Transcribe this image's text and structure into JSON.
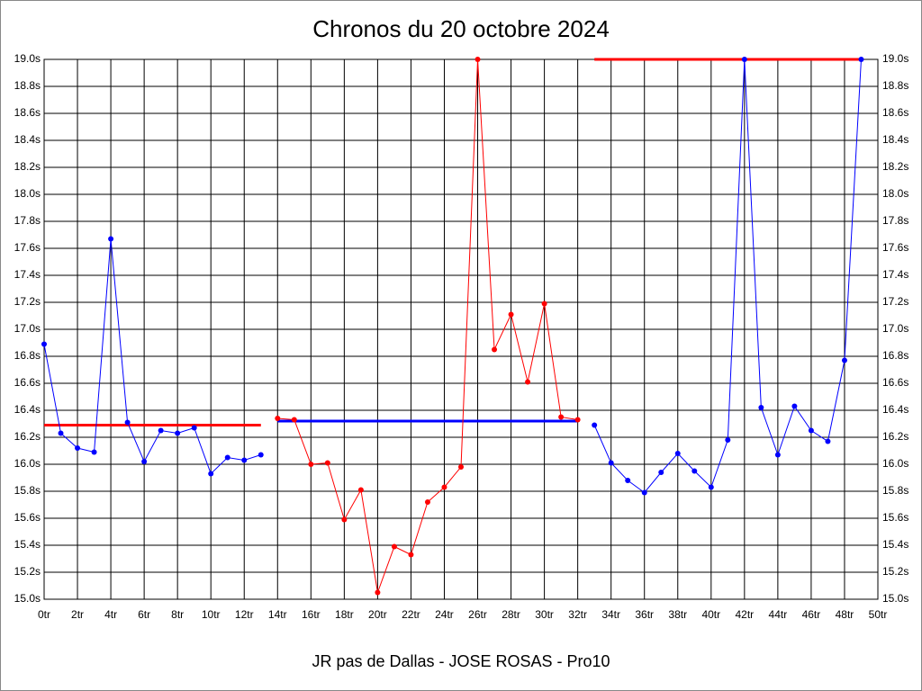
{
  "chart_data": {
    "type": "line",
    "title": "Chronos du 20 octobre 2024",
    "xlabel": "JR pas de Dallas - JOSE ROSAS - Pro10",
    "x": [
      0,
      1,
      2,
      3,
      4,
      5,
      6,
      7,
      8,
      9,
      10,
      11,
      12,
      13,
      14,
      15,
      16,
      17,
      18,
      19,
      20,
      21,
      22,
      23,
      24,
      25,
      26,
      27,
      28,
      29,
      30,
      31,
      32,
      33,
      34,
      35,
      36,
      37,
      38,
      39,
      40,
      41,
      42,
      43,
      44,
      45,
      46,
      47,
      48,
      49
    ],
    "series": [
      {
        "color": "#0000ff",
        "values": [
          16.89,
          16.23,
          16.12,
          16.09,
          17.67,
          16.31,
          16.02,
          16.25,
          16.23,
          16.27,
          15.93,
          16.05,
          16.03,
          16.07,
          null,
          null,
          null,
          null,
          null,
          null,
          null,
          null,
          null,
          null,
          null,
          null,
          null,
          null,
          null,
          null,
          null,
          null,
          null,
          16.29,
          16.01,
          15.88,
          15.79,
          15.94,
          16.08,
          15.95,
          15.83,
          16.18,
          19.0,
          16.42,
          16.07,
          16.43,
          16.25,
          16.17,
          16.77,
          19.0
        ]
      },
      {
        "color": "#ff0000",
        "values": [
          null,
          null,
          null,
          null,
          null,
          null,
          null,
          null,
          null,
          null,
          null,
          null,
          null,
          null,
          16.34,
          16.33,
          16.0,
          16.01,
          15.59,
          15.81,
          15.05,
          15.39,
          15.33,
          15.72,
          15.83,
          15.98,
          19.0,
          16.85,
          17.11,
          16.61,
          17.19,
          16.35,
          16.33,
          null,
          null,
          null,
          null,
          null,
          null,
          null,
          null,
          null,
          null,
          null,
          null,
          null,
          null,
          null,
          null,
          null
        ]
      }
    ],
    "reference_lines": [
      {
        "value": 16.29,
        "from": 0,
        "to": 13,
        "color": "#ff0000"
      },
      {
        "value": 16.32,
        "from": 14,
        "to": 32,
        "color": "#0000ff"
      },
      {
        "value": 19.0,
        "from": 33,
        "to": 49,
        "color": "#ff0000"
      }
    ],
    "xlim": [
      0,
      50
    ],
    "ylim": [
      15,
      19
    ],
    "xticks": [
      {
        "value": 0,
        "label": "0tr"
      },
      {
        "value": 2,
        "label": "2tr"
      },
      {
        "value": 4,
        "label": "4tr"
      },
      {
        "value": 6,
        "label": "6tr"
      },
      {
        "value": 8,
        "label": "8tr"
      },
      {
        "value": 10,
        "label": "10tr"
      },
      {
        "value": 12,
        "label": "12tr"
      },
      {
        "value": 14,
        "label": "14tr"
      },
      {
        "value": 16,
        "label": "16tr"
      },
      {
        "value": 18,
        "label": "18tr"
      },
      {
        "value": 20,
        "label": "20tr"
      },
      {
        "value": 22,
        "label": "22tr"
      },
      {
        "value": 24,
        "label": "24tr"
      },
      {
        "value": 26,
        "label": "26tr"
      },
      {
        "value": 28,
        "label": "28tr"
      },
      {
        "value": 30,
        "label": "30tr"
      },
      {
        "value": 32,
        "label": "32tr"
      },
      {
        "value": 34,
        "label": "34tr"
      },
      {
        "value": 36,
        "label": "36tr"
      },
      {
        "value": 38,
        "label": "38tr"
      },
      {
        "value": 40,
        "label": "40tr"
      },
      {
        "value": 42,
        "label": "42tr"
      },
      {
        "value": 44,
        "label": "44tr"
      },
      {
        "value": 46,
        "label": "46tr"
      },
      {
        "value": 48,
        "label": "48tr"
      },
      {
        "value": 50,
        "label": "50tr"
      }
    ],
    "yticks": [
      {
        "value": 15.0,
        "label": "15.0s"
      },
      {
        "value": 15.2,
        "label": "15.2s"
      },
      {
        "value": 15.4,
        "label": "15.4s"
      },
      {
        "value": 15.6,
        "label": "15.6s"
      },
      {
        "value": 15.8,
        "label": "15.8s"
      },
      {
        "value": 16.0,
        "label": "16.0s"
      },
      {
        "value": 16.2,
        "label": "16.2s"
      },
      {
        "value": 16.4,
        "label": "16.4s"
      },
      {
        "value": 16.6,
        "label": "16.6s"
      },
      {
        "value": 16.8,
        "label": "16.8s"
      },
      {
        "value": 17.0,
        "label": "17.0s"
      },
      {
        "value": 17.2,
        "label": "17.2s"
      },
      {
        "value": 17.4,
        "label": "17.4s"
      },
      {
        "value": 17.6,
        "label": "17.6s"
      },
      {
        "value": 17.8,
        "label": "17.8s"
      },
      {
        "value": 18.0,
        "label": "18.0s"
      },
      {
        "value": 18.2,
        "label": "18.2s"
      },
      {
        "value": 18.4,
        "label": "18.4s"
      },
      {
        "value": 18.6,
        "label": "18.6s"
      },
      {
        "value": 18.8,
        "label": "18.8s"
      },
      {
        "value": 19.0,
        "label": "19.0s"
      }
    ],
    "grid": true
  }
}
